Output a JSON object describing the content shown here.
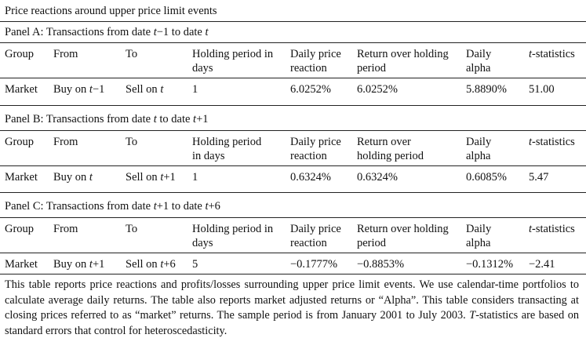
{
  "title": "Price reactions around upper price limit events",
  "panels": [
    {
      "title_parts": [
        "Panel A: Transactions from date ",
        "t",
        "−1 to date ",
        "t",
        ""
      ],
      "headers": {
        "group": "Group",
        "from": "From",
        "to": "To",
        "holding_l1": "Holding period in",
        "holding_l2": "days",
        "daily_l1": "Daily price",
        "daily_l2": "reaction",
        "ret_l1": "Return over holding",
        "ret_l2": "period",
        "alpha_l1": "Daily",
        "alpha_l2": "alpha",
        "tstat_italic": "t",
        "tstat_rest": "-statistics"
      },
      "row": {
        "group": "Market",
        "from_pre": "Buy on ",
        "from_var": "t",
        "from_post": "−1",
        "to_pre": "Sell on ",
        "to_var": "t",
        "to_post": "",
        "holding": "1",
        "daily": "6.0252%",
        "ret": "6.0252%",
        "alpha": "5.8890%",
        "tstat": "51.00"
      }
    },
    {
      "title_parts": [
        "Panel B: Transactions from date ",
        "t",
        " to date ",
        "t",
        "+1"
      ],
      "headers": {
        "group": "Group",
        "from": "From",
        "to": "To",
        "holding_l1": "Holding period",
        "holding_l2": "in days",
        "daily_l1": "Daily price",
        "daily_l2": "reaction",
        "ret_l1": "Return over",
        "ret_l2": "holding period",
        "alpha_l1": "Daily",
        "alpha_l2": "alpha",
        "tstat_italic": "t",
        "tstat_rest": "-statistics"
      },
      "row": {
        "group": "Market",
        "from_pre": "Buy on ",
        "from_var": "t",
        "from_post": "",
        "to_pre": "Sell on ",
        "to_var": "t",
        "to_post": "+1",
        "holding": "1",
        "daily": "0.6324%",
        "ret": "0.6324%",
        "alpha": "0.6085%",
        "tstat": "5.47"
      }
    },
    {
      "title_parts": [
        "Panel C: Transactions from date ",
        "t",
        "+1 to date ",
        "t",
        "+6"
      ],
      "headers": {
        "group": "Group",
        "from": "From",
        "to": "To",
        "holding_l1": "Holding period in",
        "holding_l2": "days",
        "daily_l1": "Daily price",
        "daily_l2": "reaction",
        "ret_l1": "Return over holding",
        "ret_l2": "period",
        "alpha_l1": "Daily",
        "alpha_l2": "alpha",
        "tstat_italic": "t",
        "tstat_rest": "-statistics"
      },
      "row": {
        "group": "Market",
        "from_pre": "Buy on ",
        "from_var": "t",
        "from_post": "+1",
        "to_pre": "Sell on ",
        "to_var": "t",
        "to_post": "+6",
        "holding": "5",
        "daily": "−0.1777%",
        "ret": "−0.8853%",
        "alpha": "−0.1312%",
        "tstat": "−2.41"
      }
    }
  ],
  "footnote": {
    "text_before": "This table reports price reactions and profits/losses surrounding upper price limit events. We use calendar-time portfolios to calculate average daily returns. The table also reports market adjusted returns or “Alpha”. This table considers transacting at closing prices referred to as “market” returns. The sample period is from January 2001 to July 2003. ",
    "italic": "T",
    "text_after": "-statistics are based on standard errors that control for heteroscedasticity."
  }
}
